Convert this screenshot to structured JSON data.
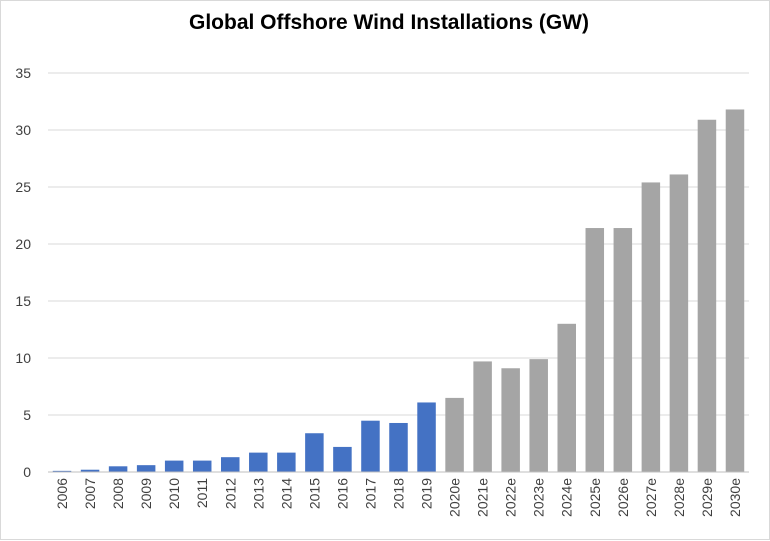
{
  "chart_data": {
    "type": "bar",
    "title": "Global Offshore Wind Installations (GW)",
    "xlabel": "",
    "ylabel": "",
    "ylim": [
      0,
      35
    ],
    "yticks": [
      0,
      5,
      10,
      15,
      20,
      25,
      30,
      35
    ],
    "grid": true,
    "legend": "none",
    "categories": [
      "2006",
      "2007",
      "2008",
      "2009",
      "2010",
      "2011",
      "2012",
      "2013",
      "2014",
      "2015",
      "2016",
      "2017",
      "2018",
      "2019",
      "2020e",
      "2021e",
      "2022e",
      "2023e",
      "2024e",
      "2025e",
      "2026e",
      "2027e",
      "2028e",
      "2029e",
      "2030e"
    ],
    "values": [
      0.1,
      0.2,
      0.5,
      0.6,
      1.0,
      1.0,
      1.3,
      1.7,
      1.7,
      3.4,
      2.2,
      4.5,
      4.3,
      6.1,
      6.5,
      9.7,
      9.1,
      9.9,
      13.0,
      21.4,
      21.4,
      25.4,
      26.1,
      30.9,
      31.8
    ],
    "colors": {
      "actual": "#4472c4",
      "estimate": "#a5a5a5"
    },
    "first_estimate_index": 14
  }
}
